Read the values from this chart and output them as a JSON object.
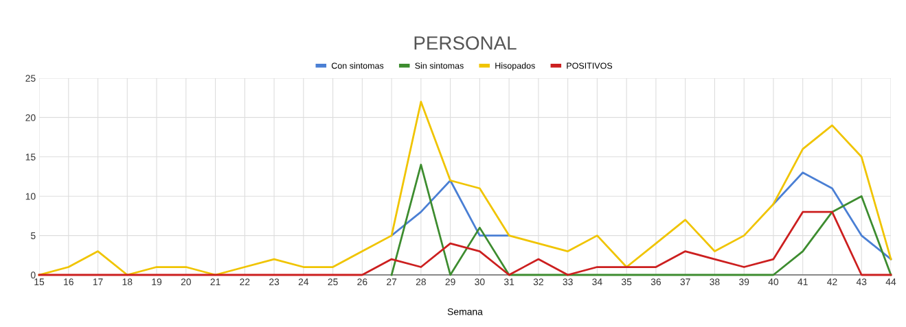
{
  "chart_data": {
    "type": "line",
    "title": "PERSONAL",
    "xlabel": "Semana",
    "categories": [
      "15",
      "16",
      "17",
      "18",
      "19",
      "20",
      "21",
      "22",
      "23",
      "24",
      "25",
      "26",
      "27",
      "28",
      "29",
      "30",
      "31",
      "32",
      "33",
      "34",
      "35",
      "36",
      "37",
      "38",
      "39",
      "40",
      "41",
      "42",
      "43",
      "44"
    ],
    "series": [
      {
        "name": "Con sintomas",
        "color": "#4a7fd4",
        "values": [
          null,
          null,
          null,
          null,
          null,
          null,
          null,
          null,
          null,
          null,
          null,
          null,
          5,
          8,
          12,
          5,
          5,
          null,
          null,
          null,
          null,
          null,
          null,
          null,
          null,
          9,
          13,
          11,
          5,
          2
        ]
      },
      {
        "name": "Sin sintomas",
        "color": "#3d8c2f",
        "values": [
          null,
          null,
          null,
          null,
          null,
          null,
          null,
          null,
          null,
          null,
          null,
          null,
          0,
          14,
          0,
          6,
          0,
          0,
          0,
          0,
          0,
          0,
          0,
          0,
          0,
          0,
          3,
          8,
          10,
          0
        ]
      },
      {
        "name": "Hisopados",
        "color": "#f0c400",
        "values": [
          0,
          1,
          3,
          0,
          1,
          1,
          0,
          1,
          2,
          1,
          1,
          3,
          5,
          22,
          12,
          11,
          5,
          4,
          3,
          5,
          1,
          4,
          7,
          3,
          5,
          9,
          16,
          19,
          15,
          2
        ]
      },
      {
        "name": "POSITIVOS",
        "color": "#cc1f1f",
        "values": [
          0,
          0,
          0,
          0,
          0,
          0,
          0,
          0,
          0,
          0,
          0,
          0,
          2,
          1,
          4,
          3,
          0,
          2,
          0,
          1,
          1,
          1,
          3,
          2,
          1,
          2,
          8,
          8,
          0,
          0
        ]
      }
    ],
    "ylim": [
      0,
      25
    ],
    "yticks": [
      0,
      5,
      10,
      15,
      20,
      25
    ],
    "grid": true,
    "legend": "top",
    "marker": "none",
    "line_style": "solid"
  }
}
